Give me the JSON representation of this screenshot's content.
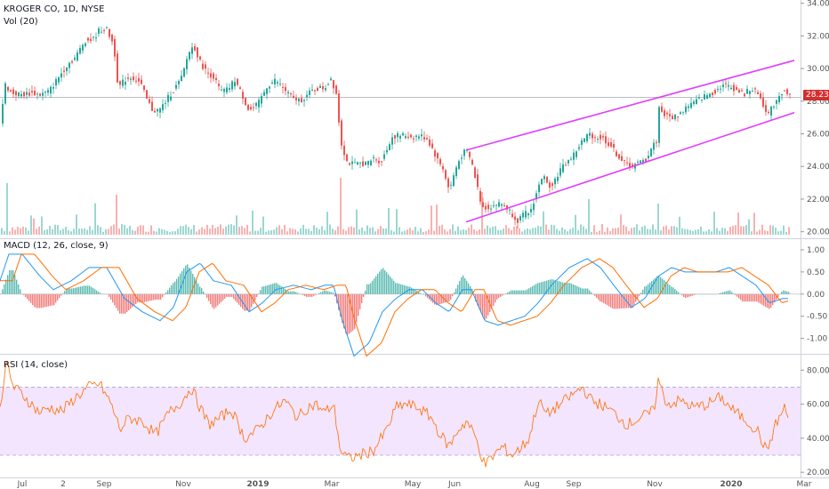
{
  "title": "KROGER CO, 1D, NYSE",
  "vol_label": "Vol (20)",
  "macd_label": "MACD (12, 26, close, 9)",
  "rsi_label": "RSI (14, close)",
  "last_price": "28.23",
  "colors": {
    "up": "#26a69a",
    "down": "#ef5350",
    "channel": "#e040fb",
    "macd_line": "#2196f3",
    "signal_line": "#ff6d00",
    "rsi_line": "#ff6d00",
    "rsi_band": "#f3e5fd",
    "price_tag": "#d32f2f"
  },
  "chart_data": [
    {
      "type": "candlestick",
      "title": "KROGER CO, 1D, NYSE",
      "x_tick_labels": [
        "Jul",
        "2",
        "Sep",
        "Nov",
        "2019",
        "Mar",
        "May",
        "Jun",
        "Aug",
        "Sep",
        "Nov",
        "2020",
        "Mar"
      ],
      "y_tick_labels": [
        "20.00",
        "22.00",
        "24.00",
        "26.00",
        "28.00",
        "30.00",
        "32.00",
        "34.00"
      ],
      "ylim": [
        19.6,
        34.2
      ],
      "close_path": [
        [
          0,
          26.7
        ],
        [
          6,
          29.0
        ],
        [
          13,
          28.5
        ],
        [
          25,
          28.4
        ],
        [
          35,
          28.5
        ],
        [
          45,
          28.4
        ],
        [
          55,
          28.6
        ],
        [
          65,
          29.4
        ],
        [
          75,
          30.2
        ],
        [
          85,
          30.7
        ],
        [
          95,
          31.7
        ],
        [
          105,
          31.8
        ],
        [
          112,
          32.4
        ],
        [
          120,
          32.4
        ],
        [
          128,
          31.4
        ],
        [
          133,
          28.8
        ],
        [
          140,
          29.3
        ],
        [
          148,
          29.5
        ],
        [
          158,
          29.1
        ],
        [
          165,
          28.1
        ],
        [
          172,
          27.4
        ],
        [
          180,
          27.5
        ],
        [
          190,
          28.3
        ],
        [
          198,
          28.9
        ],
        [
          205,
          29.5
        ],
        [
          212,
          31.0
        ],
        [
          218,
          31.4
        ],
        [
          225,
          30.4
        ],
        [
          232,
          29.8
        ],
        [
          240,
          29.5
        ],
        [
          248,
          28.6
        ],
        [
          256,
          28.7
        ],
        [
          264,
          29.3
        ],
        [
          272,
          28.4
        ],
        [
          280,
          27.4
        ],
        [
          290,
          27.8
        ],
        [
          300,
          28.9
        ],
        [
          310,
          29.3
        ],
        [
          320,
          28.7
        ],
        [
          330,
          28.1
        ],
        [
          340,
          28.1
        ],
        [
          350,
          28.6
        ],
        [
          358,
          28.8
        ],
        [
          365,
          28.8
        ],
        [
          372,
          29.4
        ],
        [
          378,
          28.5
        ],
        [
          383,
          25.6
        ],
        [
          390,
          24.3
        ],
        [
          398,
          24.1
        ],
        [
          406,
          24.2
        ],
        [
          414,
          24.2
        ],
        [
          420,
          24.5
        ],
        [
          428,
          24.3
        ],
        [
          434,
          24.9
        ],
        [
          440,
          25.8
        ],
        [
          448,
          25.9
        ],
        [
          456,
          25.9
        ],
        [
          464,
          25.8
        ],
        [
          472,
          25.9
        ],
        [
          480,
          25.7
        ],
        [
          486,
          25.1
        ],
        [
          492,
          24.4
        ],
        [
          498,
          23.9
        ],
        [
          505,
          22.5
        ],
        [
          512,
          23.8
        ],
        [
          518,
          24.6
        ],
        [
          524,
          25.0
        ],
        [
          530,
          24.3
        ],
        [
          536,
          22.9
        ],
        [
          542,
          21.5
        ],
        [
          550,
          21.5
        ],
        [
          558,
          21.7
        ],
        [
          566,
          21.7
        ],
        [
          574,
          21.2
        ],
        [
          582,
          20.7
        ],
        [
          590,
          21.1
        ],
        [
          596,
          21.2
        ],
        [
          604,
          22.5
        ],
        [
          610,
          23.5
        ],
        [
          616,
          22.8
        ],
        [
          622,
          23.0
        ],
        [
          630,
          23.8
        ],
        [
          638,
          24.3
        ],
        [
          646,
          24.8
        ],
        [
          654,
          25.5
        ],
        [
          662,
          26.0
        ],
        [
          670,
          25.8
        ],
        [
          678,
          25.7
        ],
        [
          686,
          25.3
        ],
        [
          694,
          24.7
        ],
        [
          702,
          24.2
        ],
        [
          710,
          24.0
        ],
        [
          718,
          24.2
        ],
        [
          726,
          24.4
        ],
        [
          732,
          25.1
        ],
        [
          738,
          25.6
        ],
        [
          741,
          27.6
        ],
        [
          748,
          27.1
        ],
        [
          756,
          27.0
        ],
        [
          764,
          27.2
        ],
        [
          772,
          27.7
        ],
        [
          780,
          27.9
        ],
        [
          788,
          28.2
        ],
        [
          796,
          28.4
        ],
        [
          804,
          28.6
        ],
        [
          812,
          29.0
        ],
        [
          820,
          28.9
        ],
        [
          828,
          28.7
        ],
        [
          836,
          28.4
        ],
        [
          844,
          28.8
        ],
        [
          852,
          28.5
        ],
        [
          858,
          27.8
        ],
        [
          864,
          27.2
        ],
        [
          870,
          27.8
        ],
        [
          876,
          28.4
        ],
        [
          882,
          28.7
        ],
        [
          886,
          28.3
        ]
      ],
      "channel_lines": [
        {
          "from": [
            "Jun",
            25.0
          ],
          "to": [
            "2020",
            30.5
          ]
        },
        {
          "from": [
            "Jun",
            20.6
          ],
          "to": [
            "2020",
            27.3
          ]
        }
      ],
      "last_price": 28.23
    },
    {
      "type": "bar",
      "title": "Vol (20)"
    },
    {
      "type": "line",
      "title": "MACD (12, 26, close, 9)",
      "y_tick_labels": [
        "1.00",
        "0.50",
        "0.00",
        "-0.50",
        "-1.00"
      ],
      "ylim": [
        -1.35,
        1.2
      ],
      "series": [
        {
          "name": "MACD",
          "values": [
            [
              0,
              0.3
            ],
            [
              10,
              0.9
            ],
            [
              25,
              0.9
            ],
            [
              45,
              0.4
            ],
            [
              60,
              0.1
            ],
            [
              80,
              0.3
            ],
            [
              100,
              0.6
            ],
            [
              120,
              0.6
            ],
            [
              140,
              -0.1
            ],
            [
              160,
              -0.4
            ],
            [
              180,
              -0.6
            ],
            [
              195,
              -0.3
            ],
            [
              210,
              0.5
            ],
            [
              225,
              0.7
            ],
            [
              240,
              0.3
            ],
            [
              260,
              0.2
            ],
            [
              280,
              -0.4
            ],
            [
              295,
              -0.2
            ],
            [
              310,
              0.1
            ],
            [
              330,
              0.2
            ],
            [
              350,
              0.1
            ],
            [
              365,
              0.2
            ],
            [
              375,
              0.2
            ],
            [
              385,
              -0.6
            ],
            [
              398,
              -1.4
            ],
            [
              415,
              -1.1
            ],
            [
              430,
              -0.4
            ],
            [
              445,
              -0.1
            ],
            [
              460,
              0.1
            ],
            [
              475,
              0.1
            ],
            [
              490,
              -0.2
            ],
            [
              505,
              -0.4
            ],
            [
              520,
              0.1
            ],
            [
              530,
              0.1
            ],
            [
              545,
              -0.6
            ],
            [
              560,
              -0.7
            ],
            [
              575,
              -0.6
            ],
            [
              590,
              -0.5
            ],
            [
              605,
              -0.2
            ],
            [
              620,
              0.2
            ],
            [
              640,
              0.6
            ],
            [
              660,
              0.8
            ],
            [
              675,
              0.6
            ],
            [
              690,
              0.2
            ],
            [
              710,
              -0.3
            ],
            [
              725,
              -0.1
            ],
            [
              740,
              0.4
            ],
            [
              755,
              0.6
            ],
            [
              770,
              0.5
            ],
            [
              790,
              0.5
            ],
            [
              805,
              0.5
            ],
            [
              820,
              0.6
            ],
            [
              835,
              0.4
            ],
            [
              850,
              0.2
            ],
            [
              865,
              -0.2
            ],
            [
              880,
              -0.1
            ]
          ]
        }
      ]
    },
    {
      "type": "line",
      "title": "RSI (14, close)",
      "y_tick_labels": [
        "80.00",
        "60.00",
        "40.00",
        "20.00"
      ],
      "ylim": [
        18,
        88
      ],
      "band": [
        30,
        70
      ],
      "series": [
        {
          "name": "RSI",
          "values": [
            [
              0,
              60
            ],
            [
              8,
              84
            ],
            [
              15,
              70
            ],
            [
              25,
              66
            ],
            [
              35,
              60
            ],
            [
              45,
              55
            ],
            [
              55,
              58
            ],
            [
              70,
              56
            ],
            [
              85,
              64
            ],
            [
              100,
              70
            ],
            [
              112,
              72
            ],
            [
              125,
              60
            ],
            [
              135,
              45
            ],
            [
              145,
              52
            ],
            [
              160,
              50
            ],
            [
              175,
              42
            ],
            [
              190,
              55
            ],
            [
              205,
              62
            ],
            [
              215,
              70
            ],
            [
              225,
              58
            ],
            [
              235,
              48
            ],
            [
              248,
              52
            ],
            [
              260,
              57
            ],
            [
              275,
              40
            ],
            [
              290,
              45
            ],
            [
              305,
              55
            ],
            [
              320,
              62
            ],
            [
              335,
              52
            ],
            [
              345,
              58
            ],
            [
              355,
              60
            ],
            [
              365,
              55
            ],
            [
              375,
              60
            ],
            [
              383,
              32
            ],
            [
              392,
              28
            ],
            [
              405,
              30
            ],
            [
              420,
              33
            ],
            [
              435,
              45
            ],
            [
              445,
              58
            ],
            [
              455,
              60
            ],
            [
              470,
              58
            ],
            [
              485,
              52
            ],
            [
              495,
              42
            ],
            [
              505,
              35
            ],
            [
              515,
              45
            ],
            [
              525,
              50
            ],
            [
              535,
              40
            ],
            [
              545,
              24
            ],
            [
              555,
              30
            ],
            [
              565,
              35
            ],
            [
              575,
              30
            ],
            [
              585,
              34
            ],
            [
              595,
              40
            ],
            [
              605,
              62
            ],
            [
              615,
              54
            ],
            [
              625,
              58
            ],
            [
              640,
              64
            ],
            [
              655,
              70
            ],
            [
              665,
              62
            ],
            [
              675,
              60
            ],
            [
              690,
              55
            ],
            [
              705,
              48
            ],
            [
              720,
              52
            ],
            [
              735,
              56
            ],
            [
              740,
              74
            ],
            [
              750,
              60
            ],
            [
              765,
              62
            ],
            [
              780,
              58
            ],
            [
              795,
              60
            ],
            [
              810,
              64
            ],
            [
              825,
              56
            ],
            [
              840,
              50
            ],
            [
              852,
              44
            ],
            [
              862,
              32
            ],
            [
              872,
              48
            ],
            [
              882,
              58
            ],
            [
              886,
              52
            ]
          ]
        }
      ]
    }
  ]
}
